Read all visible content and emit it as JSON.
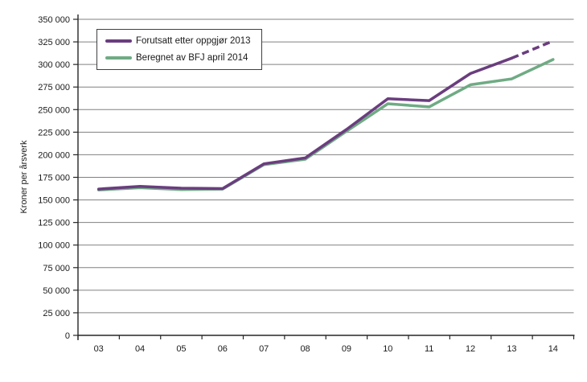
{
  "figure": {
    "background": "#ffffff",
    "text_color": "#1a1a1a"
  },
  "chart_data": {
    "type": "line",
    "title": "",
    "xlabel": "",
    "ylabel": "Kroner per årsverk",
    "categories": [
      "03",
      "04",
      "05",
      "06",
      "07",
      "08",
      "09",
      "10",
      "11",
      "12",
      "13",
      "14"
    ],
    "series": [
      {
        "name": "Forutsatt etter oppgjør 2013",
        "color": "#6A3D7E",
        "values": [
          162000,
          165000,
          163000,
          162500,
          190000,
          196500,
          228000,
          262000,
          260000,
          290000,
          307000,
          326000
        ],
        "dashed_from_index": 10
      },
      {
        "name": "Beregnet av BFJ april 2014",
        "color": "#6FAB84",
        "values": [
          161000,
          163500,
          161500,
          162000,
          189000,
          195000,
          226000,
          256500,
          253000,
          277500,
          284000,
          305500
        ],
        "dashed_from_index": null
      }
    ],
    "ylim": [
      0,
      350000
    ],
    "ytick_step": 25000,
    "ytick_labels": [
      "0",
      "25 000",
      "50 000",
      "75 000",
      "100 000",
      "125 000",
      "150 000",
      "175 000",
      "200 000",
      "225 000",
      "250 000",
      "275 000",
      "300 000",
      "325 000",
      "350 000"
    ],
    "grid": "horizontal",
    "grid_color": "#808080",
    "axis_color": "#262626",
    "legend_position": "top-left-inside"
  }
}
